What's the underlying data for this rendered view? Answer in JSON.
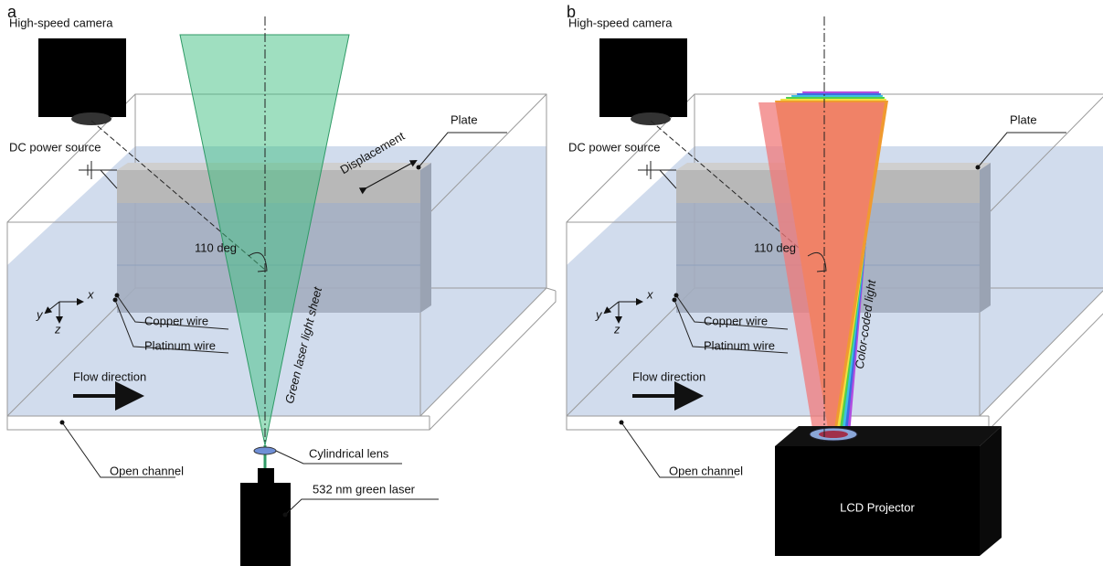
{
  "panels": [
    {
      "label": "a",
      "camera": "High-speed camera",
      "power": "DC power source",
      "plate": "Plate",
      "displacement": "Displacement",
      "angle": "110 deg",
      "light": "Green laser light sheet",
      "axis_x": "x",
      "axis_y": "y",
      "axis_z": "z",
      "copper": "Copper wire",
      "platinum": "Platinum wire",
      "flow": "Flow direction",
      "channel": "Open channel",
      "lens": "Cylindrical lens",
      "laser": "532 nm green laser"
    },
    {
      "label": "b",
      "camera": "High-speed camera",
      "power": "DC power source",
      "plate": "Plate",
      "angle": "110 deg",
      "light": "Color-coded light",
      "axis_x": "x",
      "axis_y": "y",
      "axis_z": "z",
      "copper": "Copper wire",
      "platinum": "Platinum wire",
      "flow": "Flow direction",
      "channel": "Open channel",
      "projector": "LCD Projector"
    }
  ]
}
